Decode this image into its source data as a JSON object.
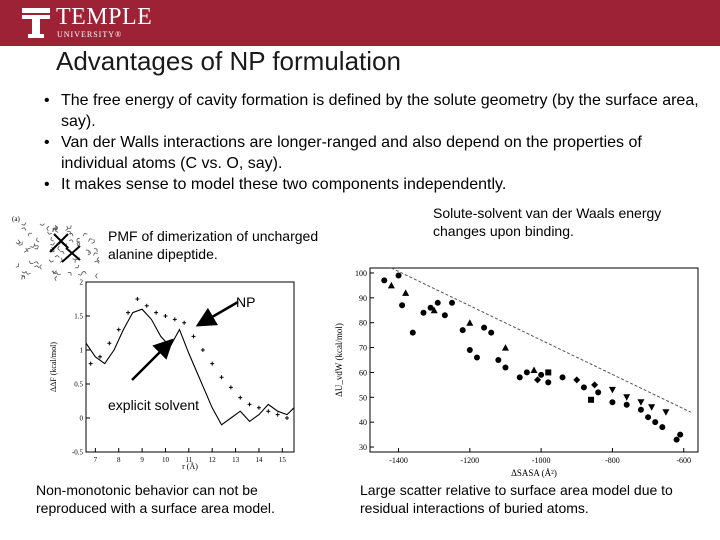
{
  "header": {
    "logo_text": "TEMPLE",
    "logo_subtext": "UNIVERSITY®",
    "color": "#9d2235"
  },
  "title": "Advantages of NP formulation",
  "bullets": [
    "The free energy of cavity formation is defined by the solute geometry (by the surface area, say).",
    "Van der Walls interactions are longer-ranged and also depend on the properties of individual atoms (C vs. O, say).",
    "It makes sense to model these two components independently."
  ],
  "left_panel": {
    "inset_label": "(a)",
    "caption_top": "PMF of dimerization of uncharged alanine dipeptide.",
    "np_label": "NP",
    "explicit_label": "explicit solvent",
    "caption_bottom": "Non-monotonic behavior can not be reproduced with a surface area model."
  },
  "right_panel": {
    "caption_top": "Solute-solvent van der Waals energy changes upon binding.",
    "caption_bottom": "Large scatter relative to surface area model due to residual interactions of buried atoms."
  },
  "chart_data": [
    {
      "type": "line",
      "xlabel": "r (Å)",
      "ylabel": "ΔΔF (kcal/mol)",
      "x_ticks": [
        "7",
        "8",
        "9",
        "10",
        "11",
        "12",
        "13",
        "14",
        "15"
      ],
      "y_ticks": [
        "-0.5",
        "0",
        "0.5",
        "1",
        "1.5",
        "2"
      ],
      "xlim": [
        6.6,
        15.5
      ],
      "ylim": [
        -0.5,
        2
      ],
      "series": [
        {
          "style": "solid",
          "x": [
            6.6,
            7.0,
            7.4,
            7.8,
            8.2,
            8.6,
            9.0,
            9.4,
            9.8,
            10.2,
            10.6,
            11.0,
            11.5,
            12.0,
            12.4,
            12.8,
            13.2,
            13.6,
            14.0,
            14.4,
            14.8,
            15.2,
            15.5
          ],
          "y": [
            1.1,
            0.9,
            0.8,
            1.0,
            1.3,
            1.55,
            1.6,
            1.45,
            1.2,
            1.05,
            1.3,
            0.95,
            0.55,
            0.15,
            -0.1,
            0.0,
            0.1,
            -0.05,
            0.05,
            0.2,
            0.1,
            0.05,
            0.15
          ]
        },
        {
          "style": "plus",
          "x": [
            6.8,
            7.2,
            7.6,
            8.0,
            8.4,
            8.8,
            9.2,
            9.6,
            10.0,
            10.4,
            10.8,
            11.2,
            11.6,
            12.0,
            12.4,
            12.8,
            13.2,
            13.6,
            14.0,
            14.4,
            14.8,
            15.2
          ],
          "y": [
            0.8,
            0.9,
            1.1,
            1.3,
            1.55,
            1.75,
            1.65,
            1.55,
            1.5,
            1.45,
            1.4,
            1.2,
            1.0,
            0.8,
            0.6,
            0.45,
            0.3,
            0.2,
            0.15,
            0.1,
            0.05,
            0.0
          ]
        }
      ]
    },
    {
      "type": "scatter",
      "xlabel": "ΔSASA (Å²)",
      "ylabel": "ΔU_vdW (kcal/mol)",
      "x_ticks": [
        "-1400",
        "-1200",
        "-1000",
        "-800",
        "-600"
      ],
      "y_ticks": [
        "30",
        "40",
        "50",
        "60",
        "70",
        "80",
        "90",
        "100"
      ],
      "xlim": [
        -1480,
        -560
      ],
      "ylim": [
        28,
        102
      ],
      "reference_line": {
        "x": [
          -1420,
          -580
        ],
        "y": [
          104,
          44
        ]
      },
      "series": [
        {
          "marker": "circle",
          "points": [
            [
              -1440,
              97
            ],
            [
              -1400,
              99
            ],
            [
              -1390,
              87
            ],
            [
              -1360,
              76
            ],
            [
              -1330,
              84
            ],
            [
              -1310,
              86
            ],
            [
              -1290,
              88
            ],
            [
              -1270,
              83
            ],
            [
              -1250,
              88
            ],
            [
              -1220,
              77
            ],
            [
              -1200,
              69
            ],
            [
              -1180,
              66
            ],
            [
              -1160,
              78
            ],
            [
              -1140,
              76
            ],
            [
              -1120,
              65
            ],
            [
              -1100,
              62
            ],
            [
              -1060,
              58
            ],
            [
              -1040,
              60
            ],
            [
              -1000,
              59
            ],
            [
              -980,
              56
            ],
            [
              -940,
              58
            ],
            [
              -880,
              54
            ],
            [
              -840,
              52
            ],
            [
              -800,
              48
            ],
            [
              -760,
              47
            ],
            [
              -720,
              45
            ],
            [
              -680,
              40
            ],
            [
              -660,
              38
            ],
            [
              -620,
              33
            ],
            [
              -610,
              35
            ],
            [
              -700,
              42
            ]
          ]
        },
        {
          "marker": "triangle-up",
          "points": [
            [
              -1420,
              95
            ],
            [
              -1380,
              92
            ],
            [
              -1300,
              85
            ],
            [
              -1200,
              80
            ],
            [
              -1100,
              70
            ],
            [
              -1020,
              61
            ]
          ]
        },
        {
          "marker": "triangle-down",
          "points": [
            [
              -800,
              53
            ],
            [
              -760,
              50
            ],
            [
              -720,
              48
            ],
            [
              -690,
              46
            ],
            [
              -650,
              44
            ]
          ]
        },
        {
          "marker": "diamond",
          "points": [
            [
              -1010,
              57
            ],
            [
              -900,
              57
            ],
            [
              -850,
              55
            ]
          ]
        },
        {
          "marker": "square",
          "points": [
            [
              -980,
              60
            ],
            [
              -860,
              49
            ]
          ]
        }
      ]
    }
  ]
}
